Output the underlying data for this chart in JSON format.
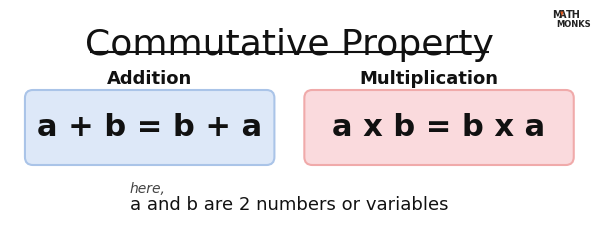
{
  "title": "Commutative Property",
  "title_fontsize": 26,
  "bg_color": "#ffffff",
  "addition_label": "Addition",
  "multiplication_label": "Multiplication",
  "addition_formula": "a + b = b + a",
  "multiplication_formula": "a x b = b x a",
  "addition_box_facecolor": "#dde8f8",
  "addition_box_edgecolor": "#aac4e8",
  "multiplication_box_facecolor": "#fadadd",
  "multiplication_box_edgecolor": "#f0aaaa",
  "formula_fontsize": 22,
  "label_fontsize": 13,
  "note_small": "here,",
  "note_main": "a and b are 2 numbers or variables",
  "note_fontsize": 13,
  "note_small_fontsize": 10,
  "logo_triangle_color": "#e05a20",
  "logo_text_color": "#222222"
}
